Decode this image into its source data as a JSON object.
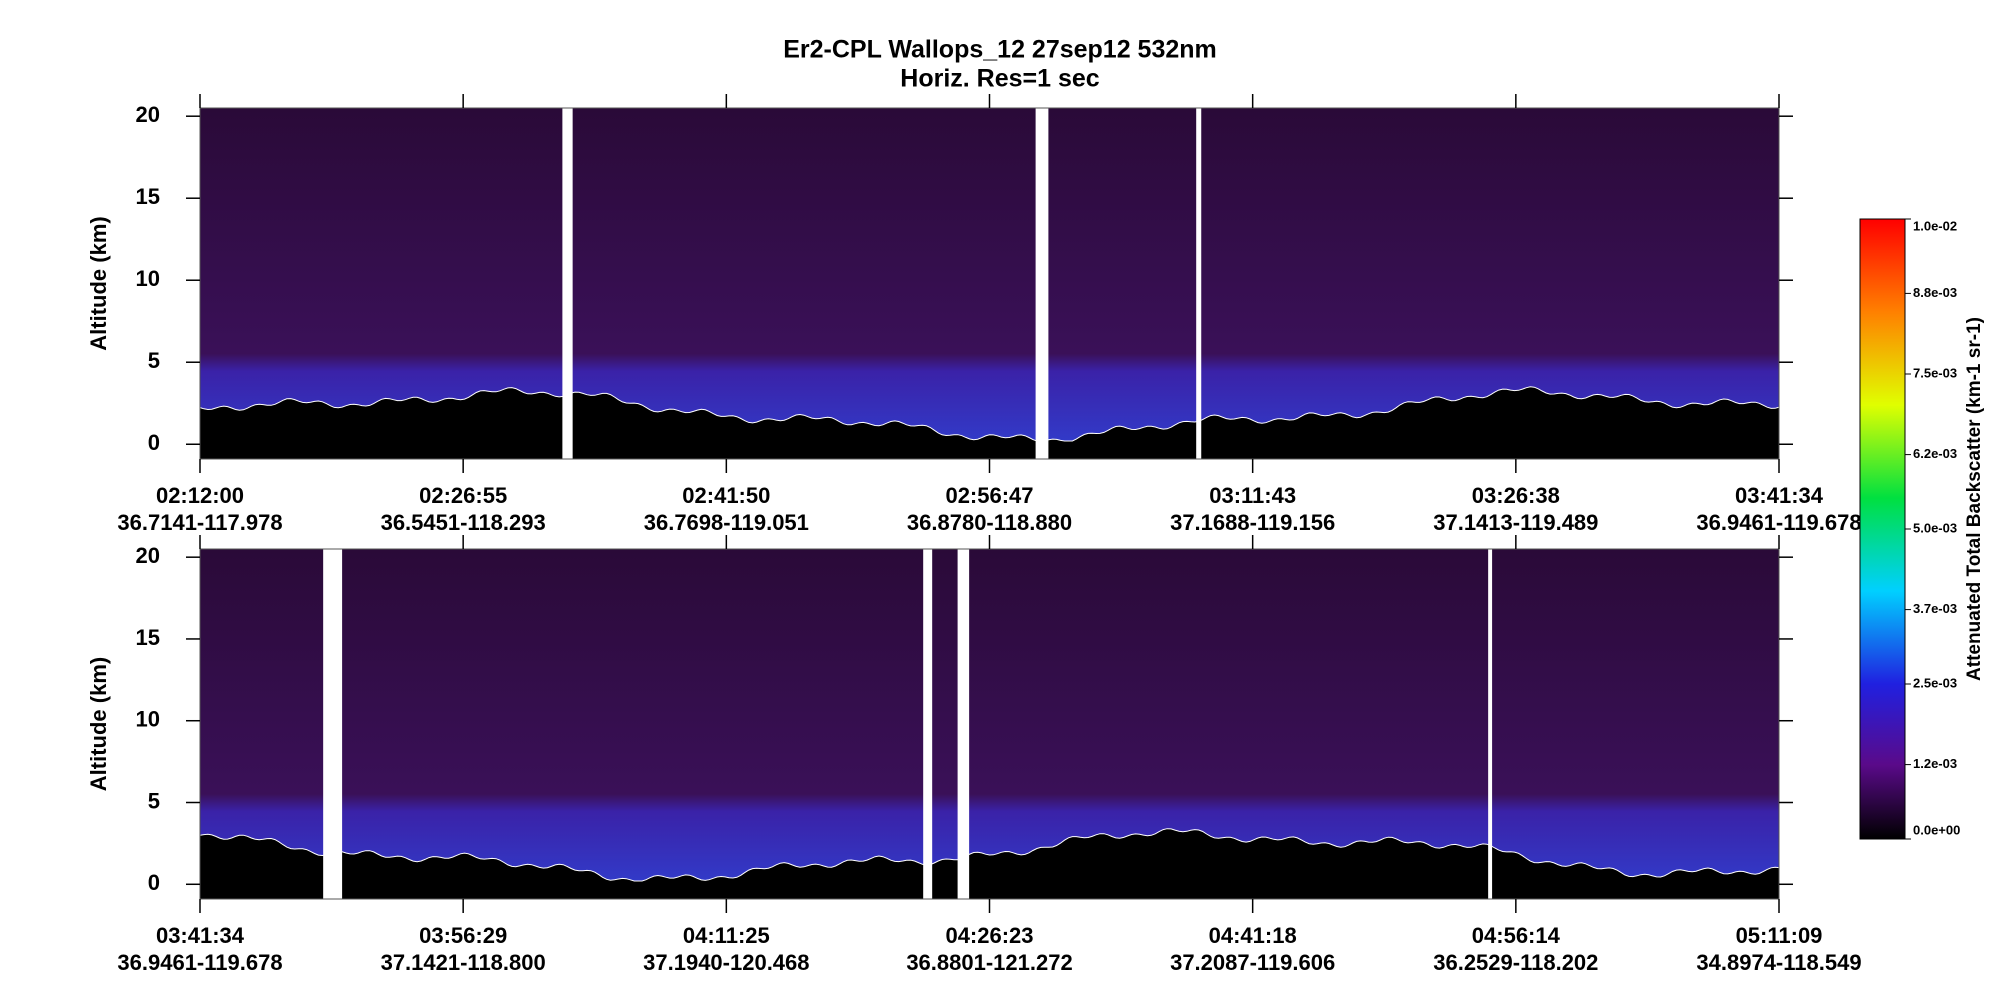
{
  "chart_data": [
    {
      "type": "heatmap",
      "title": "Er2-CPL  Wallops_12  27sep12  532nm",
      "subtitle": "Horiz. Res=1 sec",
      "ylabel": "Altitude (km)",
      "ylim": [
        -0.9,
        20.5
      ],
      "yticks": [
        0,
        5,
        10,
        15,
        20
      ],
      "x": [
        "02:12:00",
        "02:26:55",
        "02:41:50",
        "02:56:47",
        "03:11:43",
        "03:26:38",
        "03:41:34"
      ],
      "locations": [
        "36.7141-117.978",
        "36.5451-118.293",
        "36.7698-119.051",
        "36.8780-118.880",
        "37.1688-119.156",
        "37.1413-119.489",
        "36.9461-119.678"
      ],
      "colorbar": {
        "label": "Attenuated Total Backscatter (km-1 sr-1)",
        "clim": [
          0,
          0.01
        ],
        "ticks": [
          {
            "value": 0,
            "label": "0.0e+00"
          },
          {
            "value": 0.0012,
            "label": "1.2e-03"
          },
          {
            "value": 0.0025,
            "label": "2.5e-03"
          },
          {
            "value": 0.0037,
            "label": "3.7e-03"
          },
          {
            "value": 0.005,
            "label": "5.0e-03"
          },
          {
            "value": 0.0062,
            "label": "6.2e-03"
          },
          {
            "value": 0.0075,
            "label": "7.5e-03"
          },
          {
            "value": 0.0088,
            "label": "8.8e-03"
          },
          {
            "value": 0.01,
            "label": "1.0e-02"
          }
        ]
      }
    },
    {
      "type": "heatmap",
      "ylabel": "Altitude (km)",
      "ylim": [
        -0.9,
        20.5
      ],
      "yticks": [
        0,
        5,
        10,
        15,
        20
      ],
      "x": [
        "03:41:34",
        "03:56:29",
        "04:11:25",
        "04:26:23",
        "04:41:18",
        "04:56:14",
        "05:11:09"
      ],
      "locations": [
        "36.9461-119.678",
        "37.1421-118.800",
        "37.1940-120.468",
        "36.8801-121.272",
        "37.2087-119.606",
        "36.2529-118.202",
        "34.8974-118.549"
      ]
    }
  ]
}
